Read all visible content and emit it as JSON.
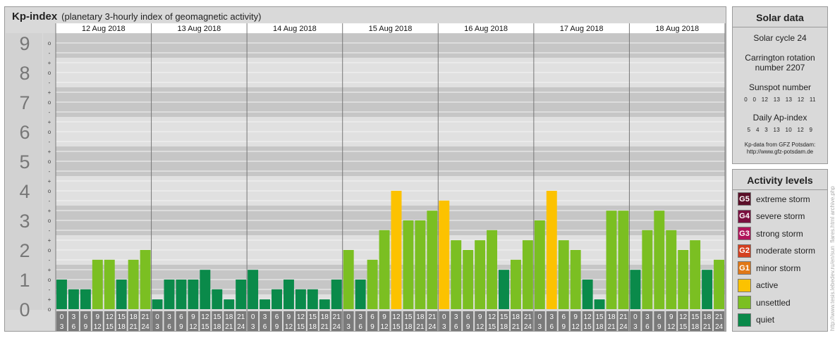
{
  "chart_title": "Kp-index",
  "chart_subtitle": "(planetary 3-hourly index of geomagnetic activity)",
  "chart_data": {
    "type": "bar",
    "y_axis_labels": [
      "0",
      "1",
      "2",
      "3",
      "4",
      "5",
      "6",
      "7",
      "8",
      "9"
    ],
    "sub_tick_labels": [
      "-",
      "o",
      "+"
    ],
    "ylim": [
      0,
      9
    ],
    "days": [
      "12 Aug 2018",
      "13 Aug 2018",
      "14 Aug 2018",
      "15 Aug 2018",
      "16 Aug 2018",
      "17 Aug 2018",
      "18 Aug 2018"
    ],
    "interval_start": [
      "0",
      "3",
      "6",
      "9",
      "12",
      "15",
      "18",
      "21"
    ],
    "interval_end": [
      "3",
      "6",
      "9",
      "12",
      "15",
      "18",
      "21",
      "24"
    ],
    "values": [
      [
        1.0,
        0.67,
        0.67,
        1.67,
        1.67,
        1.0,
        1.67,
        2.0
      ],
      [
        0.33,
        1.0,
        1.0,
        1.0,
        1.33,
        0.67,
        0.33,
        1.0
      ],
      [
        1.33,
        0.33,
        0.67,
        1.0,
        0.67,
        0.67,
        0.33,
        1.0
      ],
      [
        2.0,
        1.0,
        1.67,
        2.67,
        4.0,
        3.0,
        3.0,
        3.33
      ],
      [
        3.67,
        2.33,
        2.0,
        2.33,
        2.67,
        1.33,
        1.67,
        2.33
      ],
      [
        3.0,
        4.0,
        2.33,
        2.0,
        1.0,
        0.33,
        3.33,
        3.33
      ],
      [
        1.33,
        2.67,
        3.33,
        2.67,
        2.0,
        2.33,
        1.33,
        1.67
      ]
    ],
    "colors": {
      "quiet": "#0a8a4a",
      "unsettled": "#7bbf22",
      "active": "#fcc200",
      "minor": "#e07818"
    }
  },
  "solar": {
    "title": "Solar data",
    "cycle": "Solar cycle 24",
    "carrington_line1": "Carrington rotation",
    "carrington_line2": "number 2207",
    "sunspot_label": "Sunspot number",
    "sunspot_values": "0 0 12 13 13 12 11",
    "ap_label": "Daily Ap-index",
    "ap_values": "5 4 3 13 10 12 9",
    "source_line1": "Kp-data from GFZ Potsdam:",
    "source_line2": "http://www.gfz-potsdam.de"
  },
  "activity": {
    "title": "Activity levels",
    "levels": [
      {
        "code": "G5",
        "label": "extreme storm",
        "color": "#5a0f28"
      },
      {
        "code": "G4",
        "label": "severe storm",
        "color": "#7a1040"
      },
      {
        "code": "G3",
        "label": "strong storm",
        "color": "#b0145a"
      },
      {
        "code": "G2",
        "label": "moderate storm",
        "color": "#d44020"
      },
      {
        "code": "G1",
        "label": "minor storm",
        "color": "#e07818"
      },
      {
        "code": "",
        "label": "active",
        "color": "#fcc200"
      },
      {
        "code": "",
        "label": "unsettled",
        "color": "#7bbf22"
      },
      {
        "code": "",
        "label": "quiet",
        "color": "#0a8a4a"
      }
    ]
  },
  "credit": "http://www.tesis.lebedev.ru/en/sun_flares.html archive.php"
}
